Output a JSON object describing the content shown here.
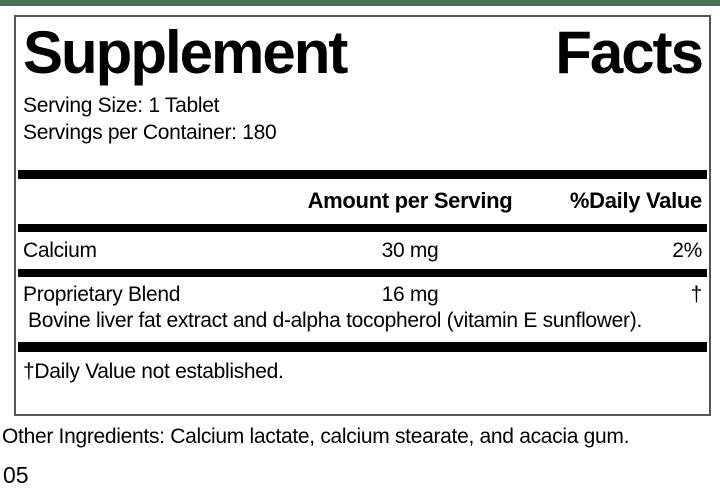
{
  "theme": {
    "top_bar_color": "#4d6e50",
    "box_border_color": "#555555",
    "rule_color": "#000000"
  },
  "panel": {
    "title": {
      "word1": "Supplement",
      "word2": "Facts"
    },
    "serving_size": "Serving Size: 1 Tablet",
    "servings_per_container": "Servings per Container: 180",
    "columns": {
      "amount_header": "Amount per Serving",
      "dv_header": "%Daily Value"
    },
    "rows": [
      {
        "name": "Calcium",
        "amount": "30 mg",
        "daily_value": "2%"
      },
      {
        "name": "Proprietary Blend",
        "amount": "16 mg",
        "daily_value": "†",
        "description": "Bovine liver fat extract and d-alpha tocopherol (vitamin E sunflower)."
      }
    ],
    "footnote": "†Daily Value not established."
  },
  "below_panel": {
    "other_ingredients": "Other Ingredients: Calcium lactate, calcium stearate, and acacia gum.",
    "lot_code": "05"
  }
}
